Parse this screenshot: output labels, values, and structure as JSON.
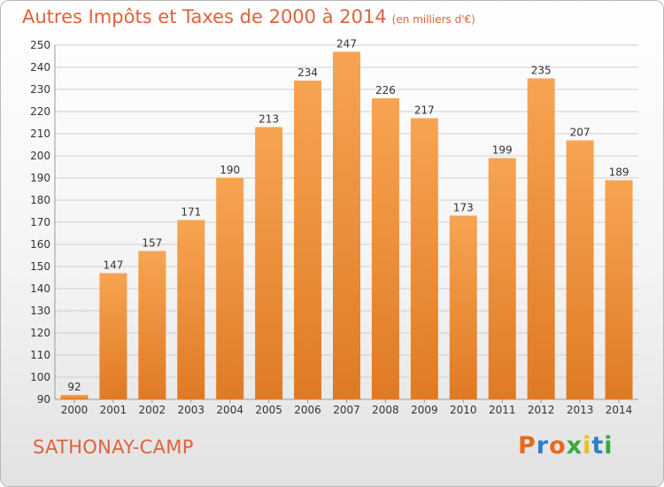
{
  "header": {
    "title": "Autres Impôts et Taxes de 2000 à 2014",
    "subtitle": "(en milliers d'€)"
  },
  "footer": {
    "city": "SATHONAY-CAMP",
    "logo": "Proxiti"
  },
  "colors": {
    "bar_light": "#f7a452",
    "bar_dark": "#e07a24",
    "title": "#e0623a"
  },
  "chart_data": {
    "type": "bar",
    "title": "Autres Impôts et Taxes de 2000 à 2014",
    "subtitle": "(en milliers d'€)",
    "categories": [
      "2000",
      "2001",
      "2002",
      "2003",
      "2004",
      "2005",
      "2006",
      "2007",
      "2008",
      "2009",
      "2010",
      "2011",
      "2012",
      "2013",
      "2014"
    ],
    "values": [
      92,
      147,
      157,
      171,
      190,
      213,
      234,
      247,
      226,
      217,
      173,
      199,
      235,
      207,
      189
    ],
    "ylim": [
      90,
      250
    ],
    "yticks": [
      90,
      100,
      110,
      120,
      130,
      140,
      150,
      160,
      170,
      180,
      190,
      200,
      210,
      220,
      230,
      240,
      250
    ],
    "grid": true,
    "xlabel": "",
    "ylabel": ""
  }
}
